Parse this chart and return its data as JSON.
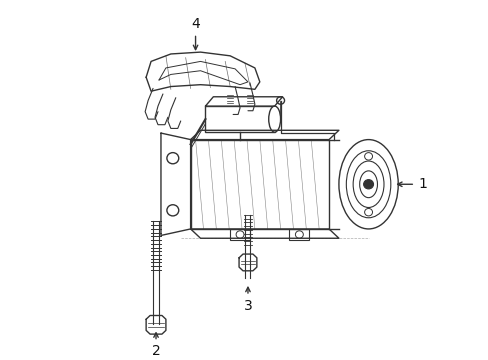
{
  "background_color": "#ffffff",
  "line_color": "#333333",
  "label_color": "#111111",
  "figsize": [
    4.89,
    3.6
  ],
  "dpi": 100
}
